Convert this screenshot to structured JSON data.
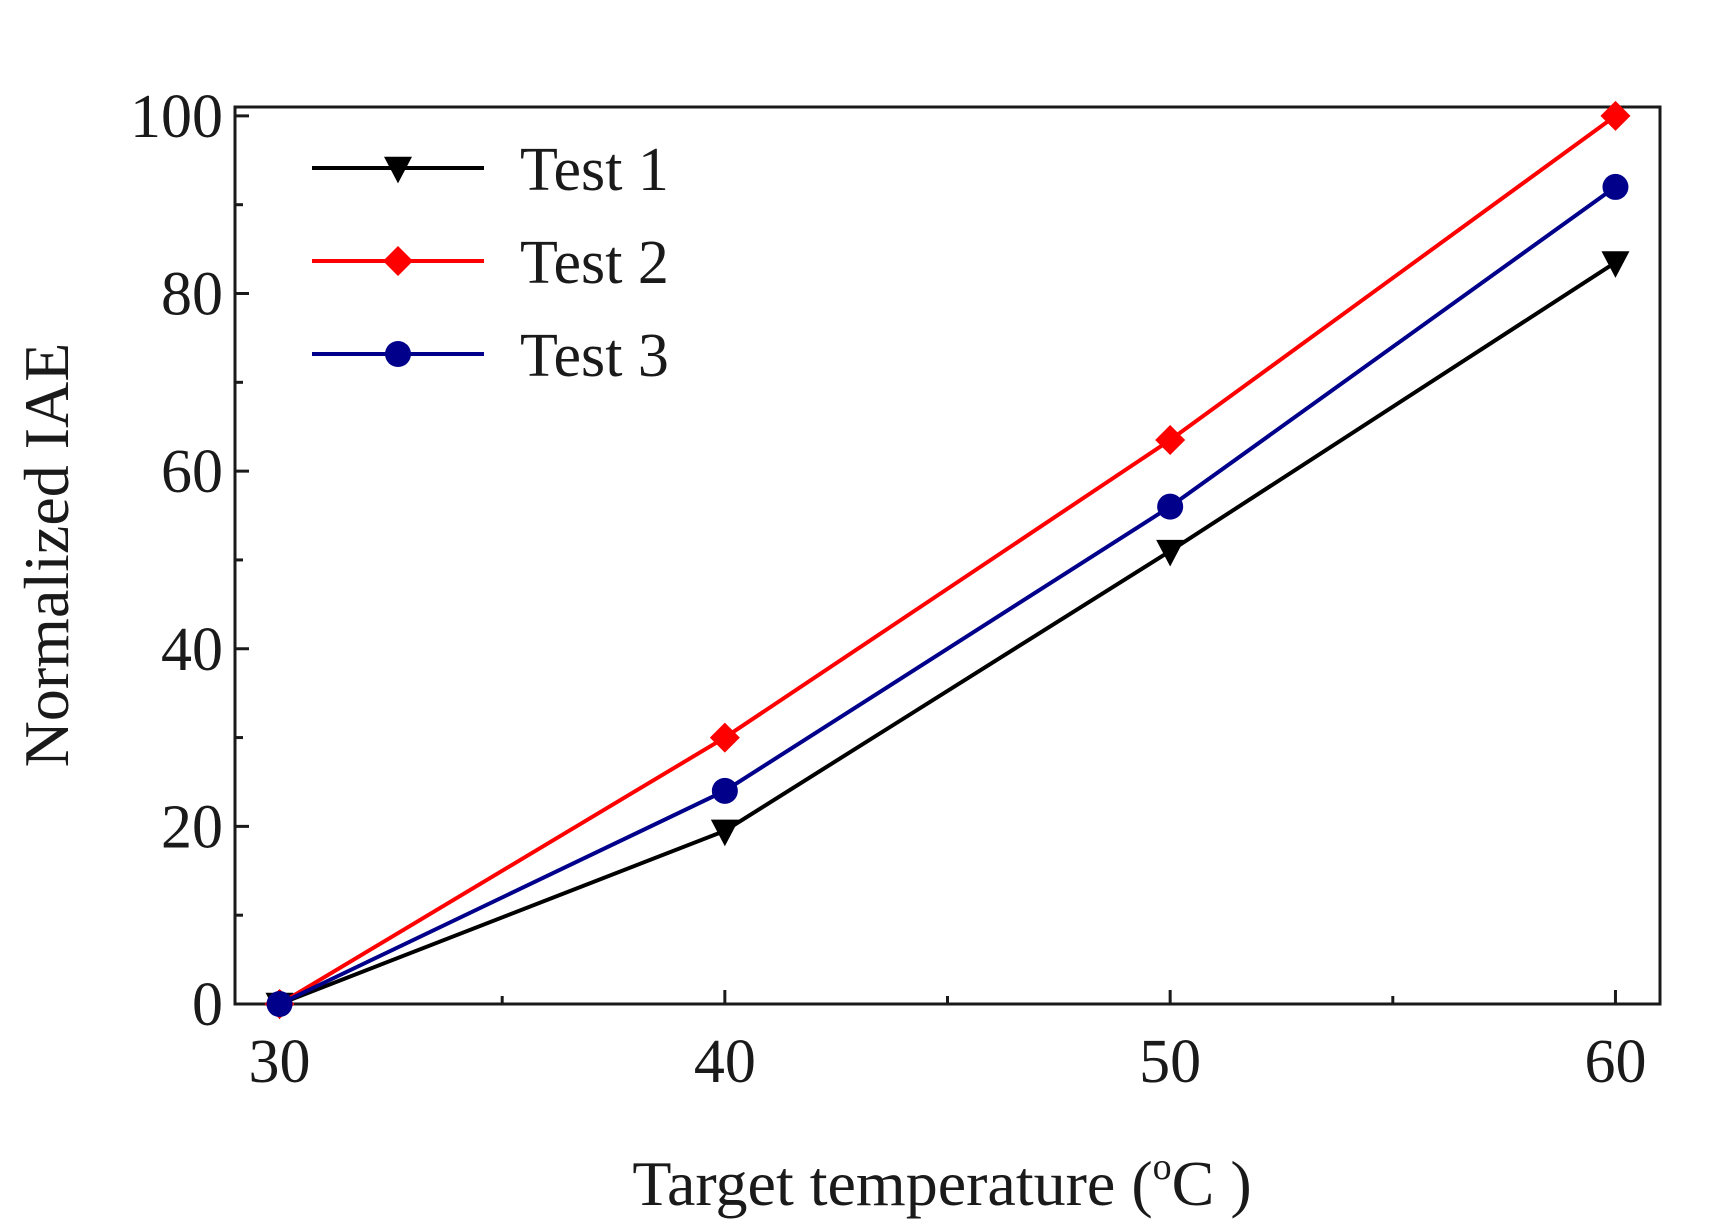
{
  "chart_data": {
    "type": "line",
    "title": "",
    "xlabel": "Target temperature (",
    "xlabel_sup": "o",
    "xlabel_unit": "C )",
    "ylabel": "Normalized IAE",
    "x": [
      30,
      40,
      50,
      60
    ],
    "xlim": [
      29,
      61
    ],
    "ylim": [
      0,
      101
    ],
    "xticks": [
      30,
      40,
      50,
      60
    ],
    "yticks": [
      0,
      20,
      40,
      60,
      80,
      100
    ],
    "grid": false,
    "legend_position": "top-left",
    "series": [
      {
        "name": "Test 1",
        "values": [
          0,
          19.5,
          51,
          83.5
        ],
        "color": "#000000",
        "marker": "triangle-down"
      },
      {
        "name": "Test 2",
        "values": [
          0,
          30,
          63.5,
          100
        ],
        "color": "#ff0000",
        "marker": "diamond"
      },
      {
        "name": "Test 3",
        "values": [
          0,
          24,
          56,
          92
        ],
        "color": "#00008b",
        "marker": "circle"
      }
    ]
  }
}
